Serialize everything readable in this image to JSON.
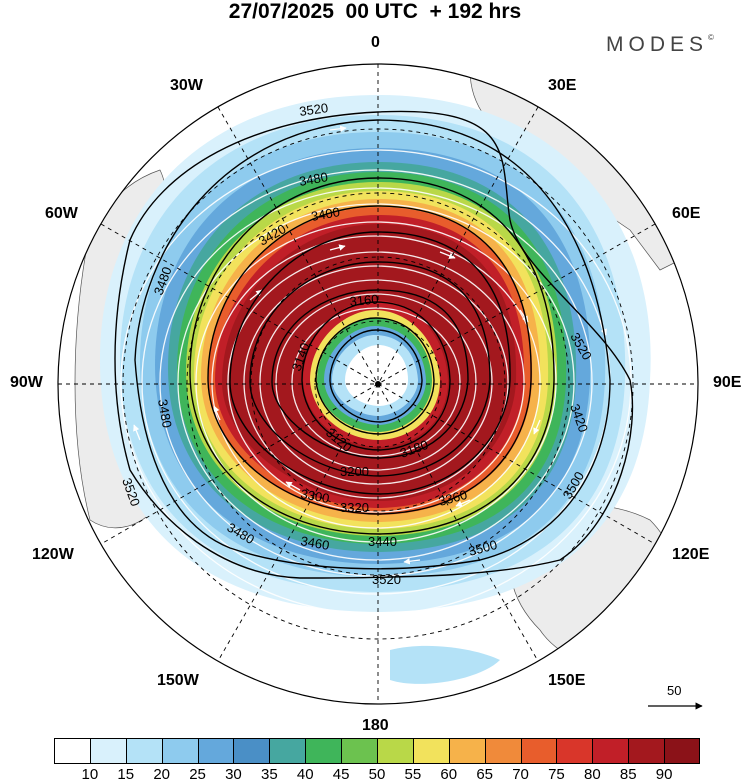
{
  "title": "27/07/2025  00 UTC  + 192 hrs",
  "brand": "MODES",
  "brand_mark": "©",
  "longitude_labels": {
    "top": "0",
    "bottom": "180",
    "left": "90W",
    "right": "90E",
    "l30w": "30W",
    "l60w": "60W",
    "l120w": "120W",
    "l150w": "150W",
    "l30e": "30E",
    "l60e": "60E",
    "l120e": "120E",
    "l150e": "150E"
  },
  "contour_labels": [
    "3520",
    "3480",
    "3400",
    "3420",
    "3160",
    "3140",
    "3120",
    "3180",
    "3200",
    "3300",
    "3320",
    "3360",
    "3440",
    "3460",
    "3500",
    "3520",
    "3480",
    "3520",
    "3500",
    "3480",
    "3520",
    "3420",
    "3480"
  ],
  "reference_vector": "50",
  "colorbar": {
    "ticks": [
      "10",
      "15",
      "20",
      "25",
      "30",
      "35",
      "40",
      "45",
      "50",
      "55",
      "60",
      "65",
      "70",
      "75",
      "80",
      "85",
      "90"
    ],
    "colors": [
      "#ffffff",
      "#d9f1fc",
      "#b4e2f7",
      "#8ecbee",
      "#64a8dc",
      "#4a8fc6",
      "#46a7a0",
      "#3fb55a",
      "#6cc24f",
      "#b9d848",
      "#f2e25c",
      "#f6b24a",
      "#f08a3a",
      "#e85d2c",
      "#d9362a",
      "#c11f28",
      "#a3181e",
      "#8b1218"
    ]
  },
  "map": {
    "shading": "wind speed",
    "land_color": "#ececec",
    "contour_color": "#000000",
    "streamline_color": "#ffffff"
  }
}
